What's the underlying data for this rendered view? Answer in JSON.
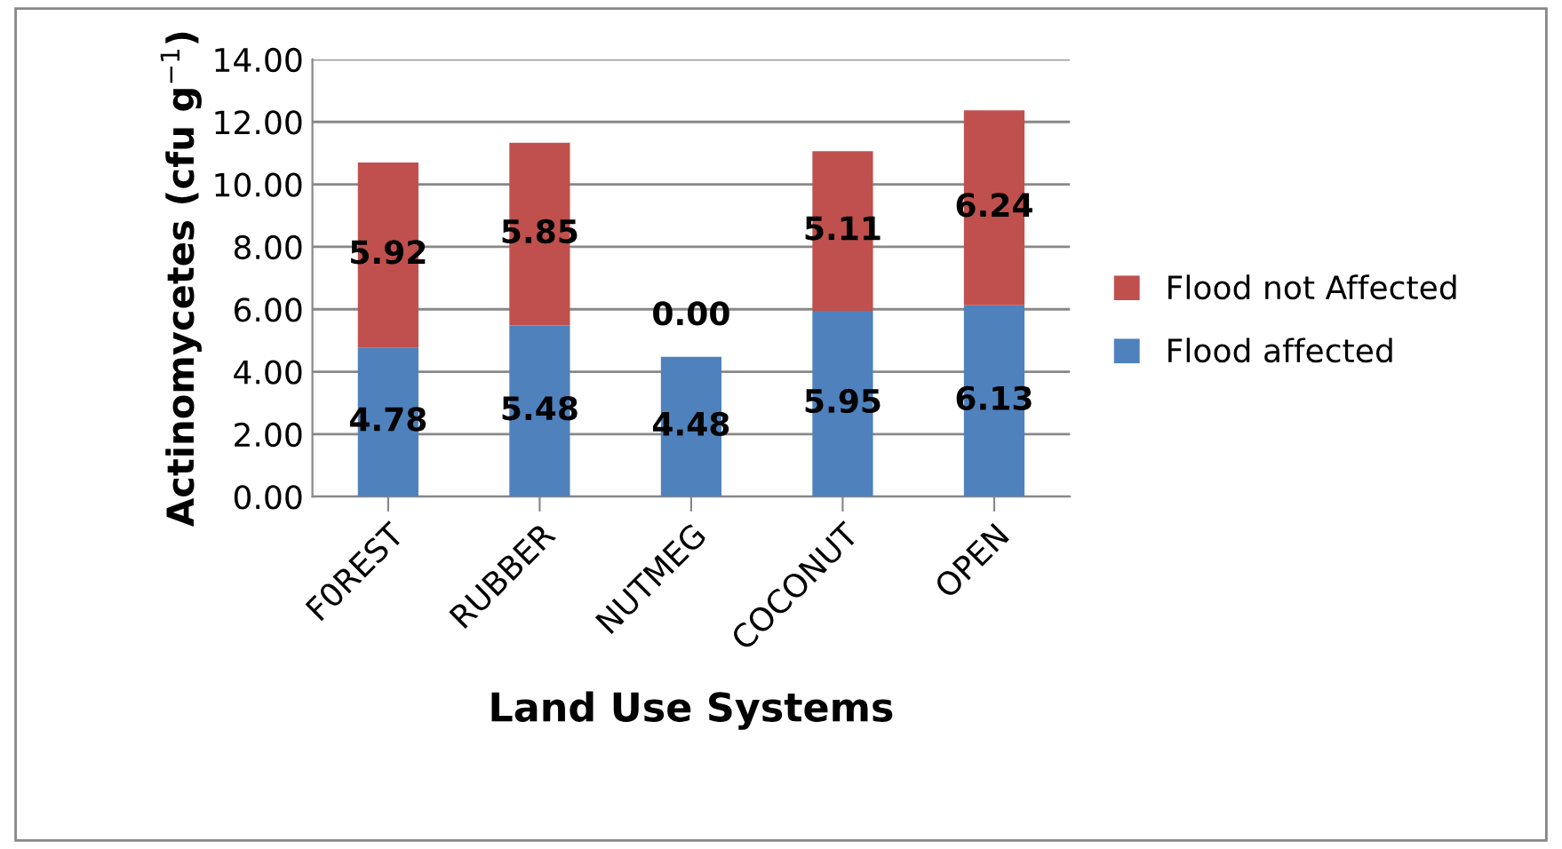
{
  "chart_data": {
    "type": "bar",
    "stacked": true,
    "xlabel": "Land Use Systems",
    "ylabel": "Actinomycetes (cfu g$^{−1}$)",
    "categories": [
      "F0REST",
      "RUBBER",
      "NUTMEG",
      "COCONUT",
      "OPEN"
    ],
    "series": [
      {
        "name": "Flood affected",
        "color": "#4f81bd",
        "values": [
          4.78,
          5.48,
          4.48,
          5.95,
          6.13
        ],
        "value_labels": [
          "4.78",
          "5.48",
          "4.48",
          "5.95",
          "6.13"
        ]
      },
      {
        "name": "Flood not Affected",
        "color": "#c0504d",
        "values": [
          5.92,
          5.85,
          0.0,
          5.11,
          6.24
        ],
        "value_labels": [
          "5.92",
          "5.85",
          "0.00",
          "5.11",
          "6.24"
        ]
      }
    ],
    "ylim": [
      0,
      14
    ],
    "yticks": [
      {
        "value": 0,
        "label": "0.00"
      },
      {
        "value": 2,
        "label": "2.00"
      },
      {
        "value": 4,
        "label": "4.00"
      },
      {
        "value": 6,
        "label": "6.00"
      },
      {
        "value": 8,
        "label": "8.00"
      },
      {
        "value": 10,
        "label": "10.00"
      },
      {
        "value": 12,
        "label": "12.00"
      },
      {
        "value": 14,
        "label": "14.00"
      }
    ],
    "grid": "y",
    "legend": "right"
  }
}
